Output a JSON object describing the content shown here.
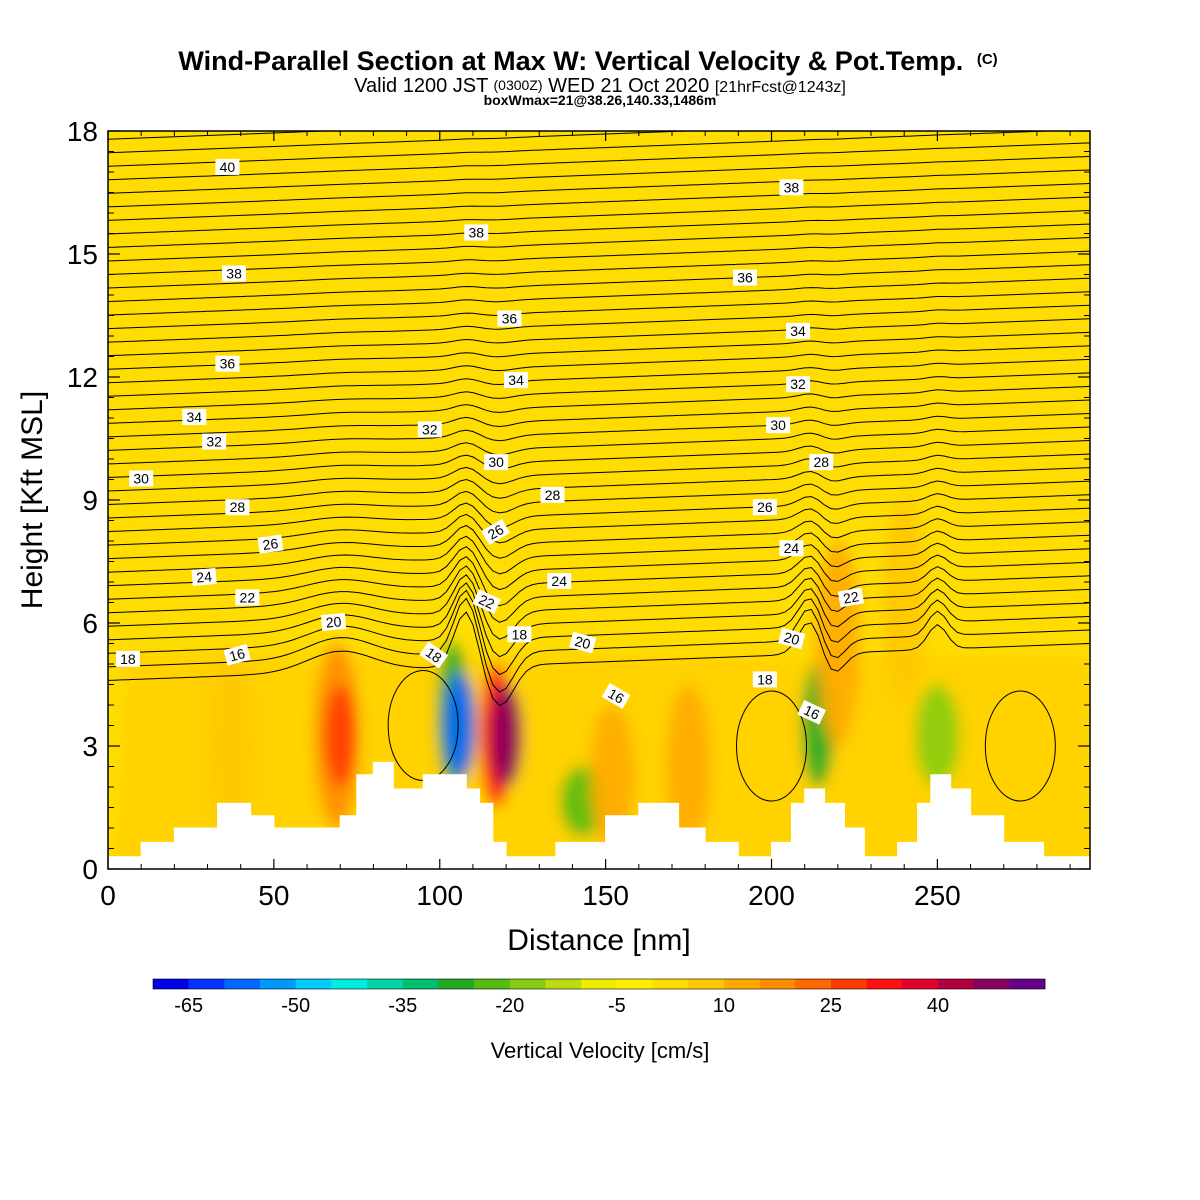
{
  "chart_data": {
    "type": "heatmap",
    "title": "Wind-Parallel Section at Max W: Vertical Velocity & Pot.Temp.",
    "title_mark": "(C)",
    "subtitle": {
      "part1": "Valid 1200 JST",
      "part2": "(0300Z)",
      "part3": "WED 21 Oct 2020",
      "part4": "[21hrFcst@1243z]"
    },
    "subtitle2": "boxWmax=21@38.26,140.33,1486m",
    "xlabel": "Distance [nm]",
    "ylabel": "Height [Kft MSL]",
    "xlim": [
      0,
      296
    ],
    "ylim": [
      0,
      18
    ],
    "x_ticks": [
      0,
      50,
      100,
      150,
      200,
      250
    ],
    "y_ticks": [
      0,
      3,
      6,
      9,
      12,
      15,
      18
    ],
    "colorbar": {
      "label": "Vertical Velocity [cm/s]",
      "tick_labels": [
        -65,
        -50,
        -35,
        -20,
        -5,
        10,
        25,
        40
      ],
      "bins": [
        {
          "lo": -70,
          "hi": -65,
          "color": "#0000e8"
        },
        {
          "lo": -65,
          "hi": -60,
          "color": "#0033ff"
        },
        {
          "lo": -60,
          "hi": -55,
          "color": "#0066ff"
        },
        {
          "lo": -55,
          "hi": -50,
          "color": "#0099ff"
        },
        {
          "lo": -50,
          "hi": -45,
          "color": "#00ccff"
        },
        {
          "lo": -45,
          "hi": -40,
          "color": "#00eedd"
        },
        {
          "lo": -40,
          "hi": -35,
          "color": "#00d4a6"
        },
        {
          "lo": -35,
          "hi": -30,
          "color": "#00c070"
        },
        {
          "lo": -30,
          "hi": -25,
          "color": "#22aa22"
        },
        {
          "lo": -25,
          "hi": -20,
          "color": "#55bb11"
        },
        {
          "lo": -20,
          "hi": -15,
          "color": "#88cc11"
        },
        {
          "lo": -15,
          "hi": -10,
          "color": "#bbdd11"
        },
        {
          "lo": -10,
          "hi": -5,
          "color": "#eeee00"
        },
        {
          "lo": -5,
          "hi": 0,
          "color": "#ffee00"
        },
        {
          "lo": 0,
          "hi": 5,
          "color": "#ffdd00"
        },
        {
          "lo": 5,
          "hi": 10,
          "color": "#ffc800"
        },
        {
          "lo": 10,
          "hi": 15,
          "color": "#ffaa00"
        },
        {
          "lo": 15,
          "hi": 20,
          "color": "#ff8c00"
        },
        {
          "lo": 20,
          "hi": 25,
          "color": "#ff6a00"
        },
        {
          "lo": 25,
          "hi": 30,
          "color": "#ff3c00"
        },
        {
          "lo": 30,
          "hi": 35,
          "color": "#ff1010"
        },
        {
          "lo": 35,
          "hi": 40,
          "color": "#e0002a"
        },
        {
          "lo": 40,
          "hi": 45,
          "color": "#b00040"
        },
        {
          "lo": 45,
          "hi": 50,
          "color": "#880060"
        },
        {
          "lo": 50,
          "hi": 55,
          "color": "#660088"
        }
      ]
    },
    "vertical_velocity_features": [
      {
        "x": 0,
        "y_range": [
          0,
          18
        ],
        "w": 2
      },
      {
        "x": 37,
        "y_range": [
          0.5,
          5.5
        ],
        "w": 8
      },
      {
        "x": 69,
        "y_range": [
          1.0,
          5.5
        ],
        "w": 18
      },
      {
        "x": 70,
        "y_range": [
          2.0,
          4.5
        ],
        "w": 28
      },
      {
        "x": 104,
        "y_range": [
          2.0,
          5.5
        ],
        "w": -30
      },
      {
        "x": 106,
        "y_range": [
          2.2,
          4.8
        ],
        "w": -60
      },
      {
        "x": 117,
        "y_range": [
          1.5,
          5.0
        ],
        "w": 30
      },
      {
        "x": 120,
        "y_range": [
          2.0,
          4.5
        ],
        "w": 48
      },
      {
        "x": 143,
        "y_range": [
          0.8,
          2.5
        ],
        "w": -25
      },
      {
        "x": 152,
        "y_range": [
          0.5,
          4.0
        ],
        "w": 12
      },
      {
        "x": 175,
        "y_range": [
          0.5,
          4.5
        ],
        "w": 10
      },
      {
        "x": 214,
        "y_range": [
          2.0,
          5.0
        ],
        "w": -28
      },
      {
        "x": 250,
        "y_range": [
          2.0,
          4.5
        ],
        "w": -18
      },
      {
        "x": 220,
        "y_range": [
          3.0,
          8.0
        ],
        "w": 12
      },
      {
        "x": 240,
        "y_range": [
          4.0,
          9.0
        ],
        "w": 8
      }
    ],
    "terrain": [
      {
        "x": 0,
        "height": 0.3
      },
      {
        "x": 10,
        "height": 0.65
      },
      {
        "x": 20,
        "height": 1.0
      },
      {
        "x": 33,
        "height": 1.6
      },
      {
        "x": 43,
        "height": 1.3
      },
      {
        "x": 50,
        "height": 1.0
      },
      {
        "x": 60,
        "height": 1.0
      },
      {
        "x": 70,
        "height": 1.3
      },
      {
        "x": 75,
        "height": 2.3
      },
      {
        "x": 80,
        "height": 2.6
      },
      {
        "x": 86,
        "height": 1.95
      },
      {
        "x": 92,
        "height": 1.95
      },
      {
        "x": 95,
        "height": 2.3
      },
      {
        "x": 104,
        "height": 2.3
      },
      {
        "x": 108,
        "height": 1.95
      },
      {
        "x": 112,
        "height": 1.6
      },
      {
        "x": 116,
        "height": 0.65
      },
      {
        "x": 120,
        "height": 0.3
      },
      {
        "x": 135,
        "height": 0.65
      },
      {
        "x": 150,
        "height": 1.3
      },
      {
        "x": 160,
        "height": 1.6
      },
      {
        "x": 172,
        "height": 1.0
      },
      {
        "x": 180,
        "height": 0.65
      },
      {
        "x": 190,
        "height": 0.3
      },
      {
        "x": 200,
        "height": 0.65
      },
      {
        "x": 206,
        "height": 1.6
      },
      {
        "x": 210,
        "height": 1.95
      },
      {
        "x": 216,
        "height": 1.6
      },
      {
        "x": 222,
        "height": 1.0
      },
      {
        "x": 228,
        "height": 0.3
      },
      {
        "x": 238,
        "height": 0.65
      },
      {
        "x": 244,
        "height": 1.6
      },
      {
        "x": 248,
        "height": 2.3
      },
      {
        "x": 254,
        "height": 1.95
      },
      {
        "x": 260,
        "height": 1.3
      },
      {
        "x": 270,
        "height": 0.65
      },
      {
        "x": 282,
        "height": 0.3
      },
      {
        "x": 296,
        "height": 0.3
      }
    ],
    "theta_contour_labels": [
      {
        "text": "40",
        "x": 36,
        "y": 17.1,
        "angle": 0
      },
      {
        "text": "38",
        "x": 38,
        "y": 14.5,
        "angle": 0
      },
      {
        "text": "38",
        "x": 111,
        "y": 15.5,
        "angle": 0
      },
      {
        "text": "38",
        "x": 206,
        "y": 16.6,
        "angle": 0
      },
      {
        "text": "36",
        "x": 36,
        "y": 12.3,
        "angle": 0
      },
      {
        "text": "36",
        "x": 121,
        "y": 13.4,
        "angle": 0
      },
      {
        "text": "36",
        "x": 192,
        "y": 14.4,
        "angle": 0
      },
      {
        "text": "34",
        "x": 26,
        "y": 11.0,
        "angle": 0
      },
      {
        "text": "34",
        "x": 123,
        "y": 11.9,
        "angle": 0
      },
      {
        "text": "34",
        "x": 208,
        "y": 13.1,
        "angle": 0
      },
      {
        "text": "32",
        "x": 32,
        "y": 10.4,
        "angle": 0
      },
      {
        "text": "32",
        "x": 97,
        "y": 10.7,
        "angle": 0
      },
      {
        "text": "32",
        "x": 208,
        "y": 11.8,
        "angle": 0
      },
      {
        "text": "30",
        "x": 10,
        "y": 9.5,
        "angle": 0
      },
      {
        "text": "30",
        "x": 117,
        "y": 9.9,
        "angle": 0
      },
      {
        "text": "30",
        "x": 202,
        "y": 10.8,
        "angle": 0
      },
      {
        "text": "28",
        "x": 39,
        "y": 8.8,
        "angle": 0
      },
      {
        "text": "28",
        "x": 134,
        "y": 9.1,
        "angle": 0
      },
      {
        "text": "28",
        "x": 215,
        "y": 9.9,
        "angle": 0
      },
      {
        "text": "26",
        "x": 49,
        "y": 7.9,
        "angle": -8
      },
      {
        "text": "26",
        "x": 117,
        "y": 8.2,
        "angle": -30
      },
      {
        "text": "26",
        "x": 198,
        "y": 8.8,
        "angle": 0
      },
      {
        "text": "24",
        "x": 29,
        "y": 7.1,
        "angle": -5
      },
      {
        "text": "24",
        "x": 136,
        "y": 7.0,
        "angle": 0
      },
      {
        "text": "24",
        "x": 206,
        "y": 7.8,
        "angle": 0
      },
      {
        "text": "22",
        "x": 42,
        "y": 6.6,
        "angle": 0
      },
      {
        "text": "22",
        "x": 114,
        "y": 6.5,
        "angle": 25
      },
      {
        "text": "22",
        "x": 224,
        "y": 6.6,
        "angle": -10
      },
      {
        "text": "20",
        "x": 68,
        "y": 6.0,
        "angle": -5
      },
      {
        "text": "20",
        "x": 143,
        "y": 5.5,
        "angle": 15
      },
      {
        "text": "20",
        "x": 206,
        "y": 5.6,
        "angle": 15
      },
      {
        "text": "18",
        "x": 6,
        "y": 5.1,
        "angle": 0
      },
      {
        "text": "18",
        "x": 98,
        "y": 5.2,
        "angle": 35
      },
      {
        "text": "18",
        "x": 124,
        "y": 5.7,
        "angle": 0
      },
      {
        "text": "18",
        "x": 198,
        "y": 4.6,
        "angle": 0
      },
      {
        "text": "16",
        "x": 39,
        "y": 5.2,
        "angle": -15
      },
      {
        "text": "16",
        "x": 153,
        "y": 4.2,
        "angle": 30
      },
      {
        "text": "16",
        "x": 212,
        "y": 3.8,
        "angle": 25
      }
    ]
  }
}
